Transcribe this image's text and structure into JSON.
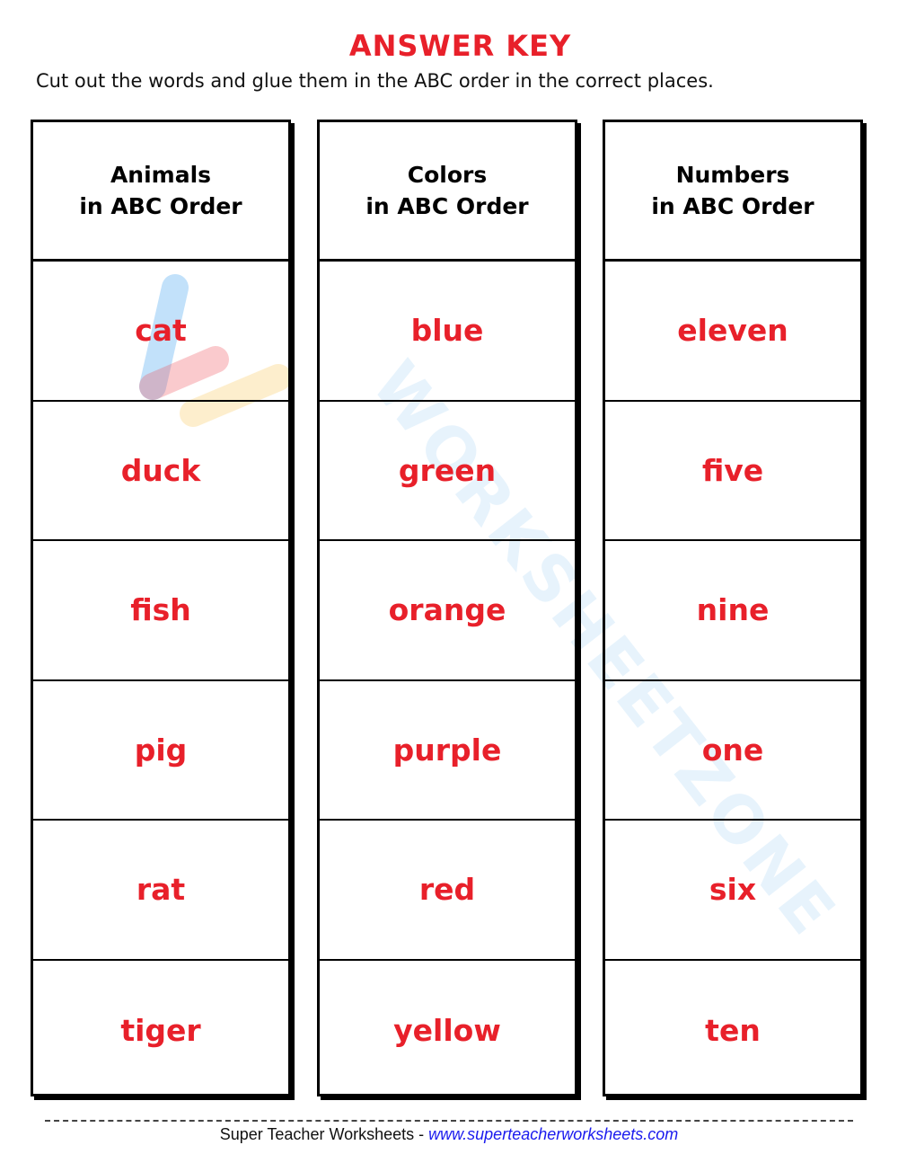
{
  "title": "ANSWER KEY",
  "instructions": "Cut out the words and glue them in the ABC order in the correct places.",
  "columns": [
    {
      "heading_line1": "Animals",
      "heading_line2": "in ABC Order",
      "words": [
        "cat",
        "duck",
        "fish",
        "pig",
        "rat",
        "tiger"
      ]
    },
    {
      "heading_line1": "Colors",
      "heading_line2": "in ABC Order",
      "words": [
        "blue",
        "green",
        "orange",
        "purple",
        "red",
        "yellow"
      ]
    },
    {
      "heading_line1": "Numbers",
      "heading_line2": "in ABC Order",
      "words": [
        "eleven",
        "five",
        "nine",
        "one",
        "six",
        "ten"
      ]
    }
  ],
  "watermark": "WORKSHEETZONE",
  "footer": {
    "brand": "Super Teacher Worksheets - ",
    "link": "www.superteacherworksheets.com"
  },
  "colors": {
    "answer": "#e8202a",
    "link": "#1a1aee"
  }
}
